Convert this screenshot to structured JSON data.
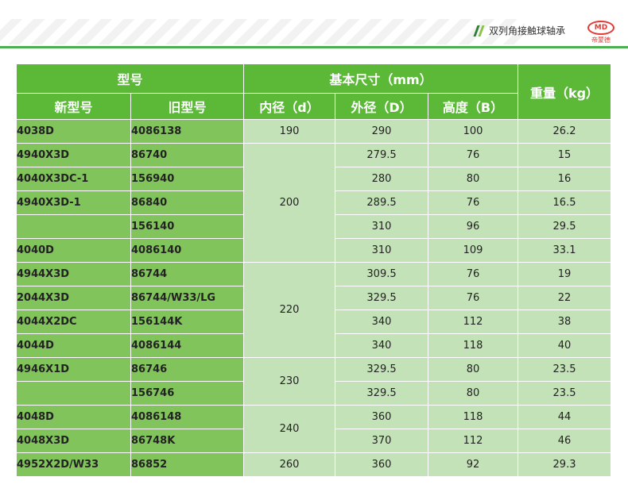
{
  "header": {
    "title": "双列角接触球轴承",
    "logo_text": "MD",
    "logo_sub": "帝蒙德"
  },
  "table": {
    "group_model": "型号",
    "group_size": "基本尺寸（mm）",
    "group_weight": "重量（kg）",
    "col_new": "新型号",
    "col_old": "旧型号",
    "col_d": "内径（d）",
    "col_D": "外径（D）",
    "col_B": "高度（B）",
    "rows": [
      {
        "new": "4038D",
        "old": "4086138",
        "d": "190",
        "D": "290",
        "B": "100",
        "w": "26.2"
      },
      {
        "new": "4940X3D",
        "old": "86740",
        "d": "200",
        "D": "279.5",
        "B": "76",
        "w": "15"
      },
      {
        "new": "4040X3DC-1",
        "old": "156940",
        "d": "",
        "D": "280",
        "B": "80",
        "w": "16"
      },
      {
        "new": "4940X3D-1",
        "old": "86840",
        "d": "",
        "D": "289.5",
        "B": "76",
        "w": "16.5"
      },
      {
        "new": "",
        "old": "156140",
        "d": "",
        "D": "310",
        "B": "96",
        "w": "29.5"
      },
      {
        "new": "4040D",
        "old": "4086140",
        "d": "",
        "D": "310",
        "B": "109",
        "w": "33.1"
      },
      {
        "new": "4944X3D",
        "old": "86744",
        "d": "220",
        "D": "309.5",
        "B": "76",
        "w": "19"
      },
      {
        "new": "2044X3D",
        "old": "86744/W33/LG",
        "d": "",
        "D": "329.5",
        "B": "76",
        "w": "22"
      },
      {
        "new": "4044X2DC",
        "old": "156144K",
        "d": "",
        "D": "340",
        "B": "112",
        "w": "38"
      },
      {
        "new": "4044D",
        "old": "4086144",
        "d": "",
        "D": "340",
        "B": "118",
        "w": "40"
      },
      {
        "new": "4946X1D",
        "old": "86746",
        "d": "230",
        "D": "329.5",
        "B": "80",
        "w": "23.5"
      },
      {
        "new": "",
        "old": "156746",
        "d": "",
        "D": "329.5",
        "B": "80",
        "w": "23.5"
      },
      {
        "new": "4048D",
        "old": "4086148",
        "d": "240",
        "D": "360",
        "B": "118",
        "w": "44"
      },
      {
        "new": "4048X3D",
        "old": "86748K",
        "d": "",
        "D": "370",
        "B": "112",
        "w": "46"
      },
      {
        "new": "4952X2D/W33",
        "old": "86852",
        "d": "260",
        "D": "360",
        "B": "92",
        "w": "29.3"
      }
    ]
  },
  "colors": {
    "header_green": "#5cb938",
    "model_green": "#82c45c",
    "data_green": "#c4e2b8",
    "logo_red": "#e53935"
  }
}
